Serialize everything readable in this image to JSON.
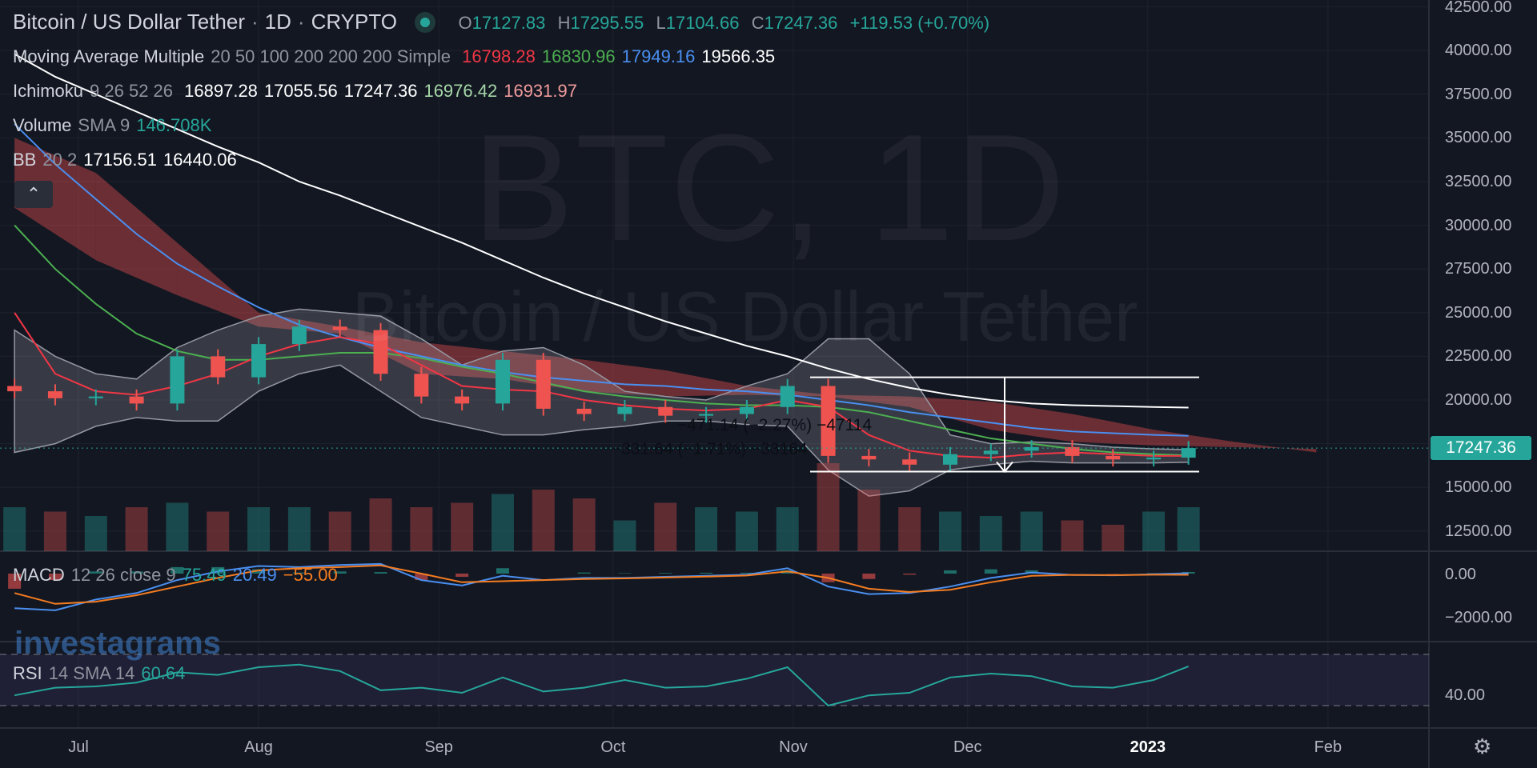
{
  "header": {
    "symbol": "Bitcoin / US Dollar Tether",
    "interval": "1D",
    "exchange": "CRYPTO",
    "sep": "·",
    "open_label": "O",
    "open": "17127.83",
    "high_label": "H",
    "high": "17295.55",
    "low_label": "L",
    "low": "17104.66",
    "close_label": "C",
    "close": "17247.36",
    "change": "+119.53 (+0.70%)"
  },
  "indicators": {
    "ma": {
      "name": "Moving Average Multiple",
      "params": "20 50 100 200 200 200 Simple",
      "values": [
        "16798.28",
        "16830.96",
        "17949.16",
        "19566.35"
      ]
    },
    "ichimoku": {
      "name": "Ichimoku",
      "params": "9 26 52 26",
      "values": [
        "16897.28",
        "17055.56",
        "17247.36",
        "16976.42",
        "16931.97"
      ]
    },
    "volume": {
      "name": "Volume",
      "params": "SMA 9",
      "value": "146.708K"
    },
    "bb": {
      "name": "BB",
      "params": "20 2",
      "values": [
        "17156.51",
        "16440.06"
      ]
    },
    "macd": {
      "name": "MACD",
      "params": "12 26 close 9",
      "values": [
        "75.49",
        "20.49",
        "−55.00"
      ]
    },
    "rsi": {
      "name": "RSI",
      "params": "14 SMA 14",
      "value": "60.64"
    }
  },
  "watermark": {
    "main": "BTC, 1D",
    "sub": "Bitcoin / US Dollar Tether",
    "logo": "investagrams"
  },
  "collapse_icon": "chevron-up-icon",
  "settings_icon": "gear-icon",
  "measurements": [
    "−471.14 (−2.27%) −47114",
    "−331.64 (−1.71%) −33164"
  ],
  "last_price_tag": "17247.36",
  "colors": {
    "up": "#26a69a",
    "down": "#ef5350",
    "ma20": "#f23645",
    "ma50": "#4caf50",
    "ma100": "#4a8ff0",
    "ma200": "#ffffff",
    "macd": "#4a8ff0",
    "signal": "#f57c20",
    "rsi": "#26a69a"
  },
  "chart_data": {
    "type": "candlestick",
    "price_axis": {
      "ticks": [
        "42500.00",
        "40000.00",
        "37500.00",
        "35000.00",
        "32500.00",
        "30000.00",
        "27500.00",
        "25000.00",
        "22500.00",
        "20000.00",
        "15000.00",
        "12500.00"
      ],
      "range": [
        12500,
        42500
      ]
    },
    "macd_axis": {
      "ticks": [
        "0.00",
        "−2000.00"
      ]
    },
    "rsi_axis": {
      "ticks": [
        "40.00"
      ]
    },
    "time_axis": [
      {
        "label": "Jul",
        "date": "2022-07-01"
      },
      {
        "label": "Aug",
        "date": "2022-08-01"
      },
      {
        "label": "Sep",
        "date": "2022-09-01"
      },
      {
        "label": "Oct",
        "date": "2022-10-01"
      },
      {
        "label": "Nov",
        "date": "2022-11-01"
      },
      {
        "label": "Dec",
        "date": "2022-12-01"
      },
      {
        "label": "2023",
        "date": "2023-01-01"
      },
      {
        "label": "Feb",
        "date": "2023-02-01"
      }
    ],
    "dates": [
      "2022-06-20",
      "2022-06-27",
      "2022-07-04",
      "2022-07-11",
      "2022-07-18",
      "2022-07-25",
      "2022-08-01",
      "2022-08-08",
      "2022-08-15",
      "2022-08-22",
      "2022-08-29",
      "2022-09-05",
      "2022-09-12",
      "2022-09-19",
      "2022-09-26",
      "2022-10-03",
      "2022-10-10",
      "2022-10-17",
      "2022-10-24",
      "2022-10-31",
      "2022-11-07",
      "2022-11-14",
      "2022-11-21",
      "2022-11-28",
      "2022-12-05",
      "2022-12-12",
      "2022-12-19",
      "2022-12-26",
      "2023-01-02",
      "2023-01-08"
    ],
    "close": [
      20500,
      20100,
      20200,
      19800,
      22500,
      21300,
      23200,
      24200,
      24000,
      21500,
      20200,
      19800,
      22300,
      19500,
      19200,
      19600,
      19100,
      19200,
      19600,
      20800,
      16800,
      16600,
      16300,
      16900,
      17100,
      17300,
      16800,
      16600,
      16700,
      17247.36
    ],
    "ma20": [
      25000,
      21500,
      20500,
      20300,
      20800,
      21500,
      22500,
      23200,
      23600,
      23200,
      22000,
      20800,
      20600,
      20500,
      20000,
      19700,
      19500,
      19400,
      19500,
      20000,
      19600,
      18000,
      17100,
      16800,
      16700,
      16900,
      17000,
      16900,
      16800,
      16798.28
    ],
    "ma50": [
      30000,
      27500,
      25500,
      23800,
      22800,
      22300,
      22300,
      22500,
      22700,
      22700,
      22400,
      21900,
      21500,
      21000,
      20500,
      20200,
      20000,
      19800,
      19700,
      19700,
      19600,
      19300,
      18800,
      18300,
      17800,
      17500,
      17200,
      17000,
      16900,
      16830.96
    ],
    "ma100": [
      35800,
      33500,
      31500,
      29500,
      27800,
      26500,
      25300,
      24300,
      23600,
      23000,
      22500,
      22000,
      21600,
      21300,
      21100,
      20900,
      20800,
      20600,
      20500,
      20300,
      20000,
      19700,
      19300,
      19000,
      18700,
      18400,
      18200,
      18100,
      18000,
      17949.16
    ],
    "ma200": [
      39800,
      38500,
      37500,
      36500,
      35500,
      34500,
      33600,
      32500,
      31700,
      30800,
      29900,
      29000,
      28000,
      27000,
      26100,
      25300,
      24500,
      23800,
      23100,
      22500,
      21800,
      21200,
      20700,
      20300,
      20000,
      19800,
      19700,
      19650,
      19600,
      19566.35
    ],
    "bb_upper": [
      24000,
      22500,
      21500,
      21200,
      23000,
      24000,
      24800,
      25200,
      25000,
      24800,
      23500,
      22000,
      22800,
      23000,
      22000,
      20500,
      20200,
      20000,
      20800,
      21500,
      23500,
      23500,
      21500,
      18000,
      17500,
      17600,
      17500,
      17300,
      17200,
      17156.51
    ],
    "bb_lower": [
      17000,
      17500,
      18500,
      19000,
      18800,
      18800,
      20500,
      21500,
      22000,
      20500,
      19000,
      18500,
      18000,
      18000,
      18300,
      18500,
      18800,
      18800,
      18600,
      18500,
      16000,
      14500,
      14800,
      16000,
      16300,
      16500,
      16400,
      16400,
      16400,
      16440.06
    ],
    "cloud_dates": [
      "2022-06-20",
      "2022-07-04",
      "2022-07-18",
      "2022-08-01",
      "2022-08-15",
      "2022-08-29",
      "2022-09-12",
      "2022-09-26",
      "2022-10-10",
      "2022-10-24",
      "2022-11-07",
      "2022-11-21",
      "2022-12-05",
      "2022-12-19",
      "2023-01-02",
      "2023-01-16",
      "2023-01-30"
    ],
    "span_a": [
      31000,
      28000,
      26000,
      24200,
      23800,
      21500,
      21200,
      20500,
      20200,
      20300,
      20200,
      19600,
      18300,
      17600,
      17400,
      17300,
      17200
    ],
    "span_b": [
      35000,
      33000,
      29000,
      25000,
      24200,
      23300,
      22800,
      22300,
      21700,
      20800,
      20300,
      20200,
      19900,
      19200,
      18300,
      17600,
      17000
    ],
    "volume": [
      0.5,
      0.45,
      0.4,
      0.5,
      0.55,
      0.45,
      0.5,
      0.5,
      0.45,
      0.6,
      0.5,
      0.55,
      0.65,
      0.7,
      0.6,
      0.35,
      0.55,
      0.5,
      0.45,
      0.5,
      1.0,
      0.7,
      0.5,
      0.45,
      0.4,
      0.45,
      0.35,
      0.3,
      0.45,
      0.5
    ],
    "macd_line": [
      -1600,
      -1700,
      -1200,
      -900,
      -300,
      100,
      350,
      300,
      400,
      450,
      -300,
      -550,
      -100,
      -300,
      -200,
      -200,
      -150,
      -100,
      -50,
      250,
      -600,
      -950,
      -900,
      -600,
      -200,
      50,
      -60,
      -80,
      -30,
      20.49
    ],
    "signal_line": [
      -900,
      -1400,
      -1300,
      -1000,
      -600,
      -200,
      150,
      250,
      300,
      380,
      0,
      -400,
      -350,
      -300,
      -250,
      -220,
      -180,
      -140,
      -90,
      100,
      -200,
      -700,
      -850,
      -750,
      -400,
      -100,
      -60,
      -70,
      -50,
      -55.0
    ],
    "rsi": [
      38,
      44,
      45,
      48,
      56,
      54,
      60,
      62,
      57,
      42,
      44,
      40,
      52,
      41,
      44,
      50,
      44,
      45,
      51,
      60,
      30,
      38,
      40,
      52,
      55,
      53,
      45,
      44,
      50,
      60.64
    ],
    "rsi_bands": [
      70,
      30
    ]
  }
}
